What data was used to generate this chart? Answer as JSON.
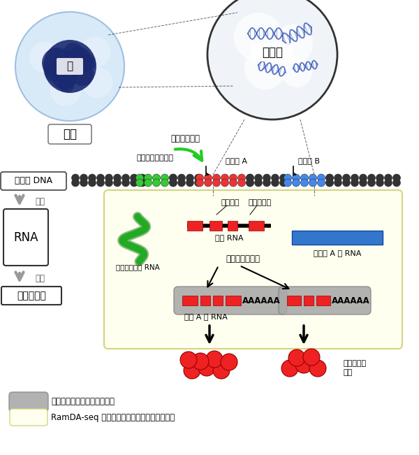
{
  "bg_color": "#ffffff",
  "cell_label": "細胞",
  "nucleus_label": "核",
  "genome_label": "ゲノム",
  "genomeDNA_label": "ゲノム DNA",
  "transcription_label": "転写",
  "RNA_label": "RNA",
  "translation_label": "翻訳",
  "protein_label": "タンパク質",
  "activates_label": "転写を活性化",
  "enhancer_region_label": "エンハンサー領域",
  "geneA_label": "遺伝子 A",
  "geneB_label": "遺伝子 B",
  "exon_label": "エキソン",
  "intron_label": "イントロン",
  "nascent_RNA_label": "新生 RNA",
  "splicing_label": "スプライシング",
  "enhancer_RNA_label": "エンハンサー RNA",
  "polyA_RNA_label": "ポリ A 型 RNA",
  "nonpolyA_RNA_label": "非ポリ A 型 RNA",
  "different_func_label": "異なる機能",
  "disease_label": "疾患",
  "legend1_label": "既存の技術で計測できる範囲",
  "legend2_label": "RamDA-seq で新たに計測が可能となった範囲",
  "yellow_box_color": "#fffff0",
  "yellow_box_border": "#d4d480",
  "gray_box_color": "#aaaaaa",
  "red_color": "#ee2222",
  "blue_color": "#3377cc",
  "green_color": "#22aa22",
  "green_dark": "#117711",
  "dna_black": "#333333",
  "dna_green": "#33cc33",
  "dna_red": "#ee3333",
  "dna_blue": "#4488ee",
  "arrow_gray": "#999999"
}
